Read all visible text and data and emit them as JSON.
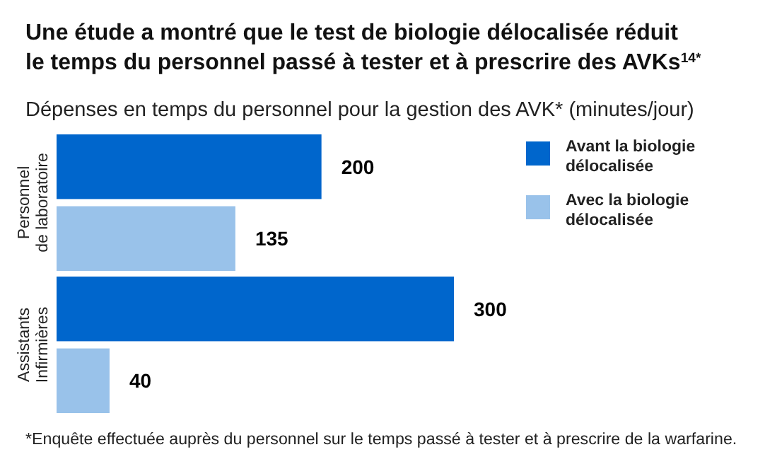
{
  "chart_data": {
    "type": "bar",
    "orientation": "horizontal",
    "title": "Une étude a montré que le test de biologie délocalisée réduit\nle temps du personnel passé à tester et à prescrire des AVKs$^{14*}$",
    "subtitle": "Dépenses en temps du personnel pour la gestion des AVK* (minutes/jour)",
    "categories": [
      "Personnel\nde laboratoire",
      "Assistants\nInfirmières"
    ],
    "series": [
      {
        "name": "Avant la biologie\ndélocalisée",
        "color": "#0066cc",
        "values": [
          200,
          300
        ]
      },
      {
        "name": "Avec la biologie\ndélocalisée",
        "color": "#99c2ea",
        "values": [
          135,
          40
        ]
      }
    ],
    "data_labels": true,
    "legend": "right",
    "annotations": [
      "*Enquête effectuée auprès du personnel sur le temps passé à tester et à prescrire de la warfarine."
    ]
  }
}
